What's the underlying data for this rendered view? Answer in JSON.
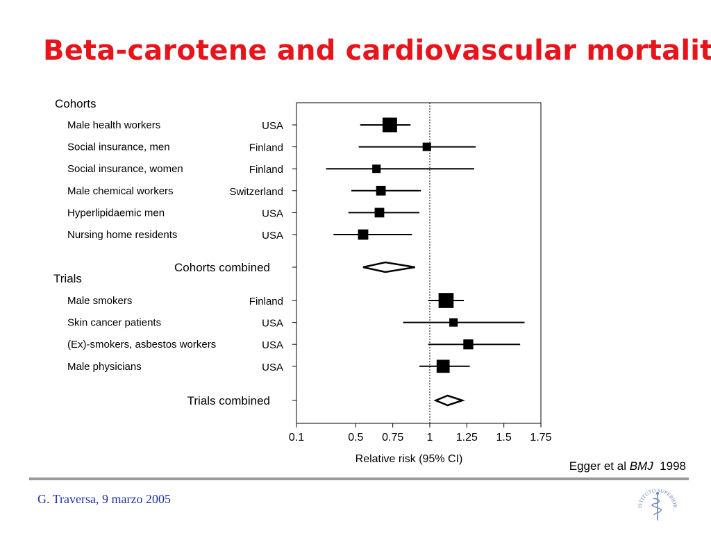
{
  "slide": {
    "title": "Beta-carotene and cardiovascular mortality",
    "citation": {
      "author": "Egger et al",
      "journal": "BMJ",
      "year": "1998"
    },
    "footer": {
      "author_date": "G. Traversa, 9 marzo 2005"
    },
    "seal_text": "ISTITUTO SUPERIORE DI SANITÀ",
    "colors": {
      "title": "#e8141c",
      "footer_text": "#1f2fa0",
      "rule": "#9a9a9a",
      "seal": "#6a86b8"
    }
  },
  "chart_data": {
    "type": "forest",
    "title": "Beta-carotene and cardiovascular mortality",
    "xlabel": "Relative risk (95% CI)",
    "ylabel": "",
    "xlim": [
      0.1,
      1.75
    ],
    "x_ticks": [
      "0.1",
      "0.5",
      "0.75",
      "1",
      "1.25",
      "1.5",
      "1.75"
    ],
    "reference_line": 1,
    "grid": false,
    "groups": [
      {
        "label": "Cohorts",
        "studies": [
          {
            "label": "Male health workers",
            "country": "USA",
            "rr": 0.73,
            "lo": 0.53,
            "hi": 0.87,
            "weight": 3
          },
          {
            "label": "Social insurance, men",
            "country": "Finland",
            "rr": 0.98,
            "lo": 0.52,
            "hi": 1.31,
            "weight": 1
          },
          {
            "label": "Social insurance, women",
            "country": "Finland",
            "rr": 0.64,
            "lo": 0.3,
            "hi": 1.3,
            "weight": 1
          },
          {
            "label": "Male chemical workers",
            "country": "Switzerland",
            "rr": 0.67,
            "lo": 0.47,
            "hi": 0.94,
            "weight": 1.3
          },
          {
            "label": "Hyperlipidaemic men",
            "country": "USA",
            "rr": 0.66,
            "lo": 0.45,
            "hi": 0.93,
            "weight": 1.3
          },
          {
            "label": "Nursing home residents",
            "country": "USA",
            "rr": 0.55,
            "lo": 0.35,
            "hi": 0.88,
            "weight": 1.5
          }
        ],
        "combined": {
          "label": "Cohorts combined",
          "rr": 0.7,
          "lo": 0.55,
          "hi": 0.9
        }
      },
      {
        "label": "Trials",
        "studies": [
          {
            "label": "Male smokers",
            "country": "Finland",
            "rr": 1.11,
            "lo": 0.99,
            "hi": 1.23,
            "weight": 3.2
          },
          {
            "label": "Skin cancer patients",
            "country": "USA",
            "rr": 1.16,
            "lo": 0.82,
            "hi": 1.64,
            "weight": 1
          },
          {
            "label": "(Ex)-smokers, asbestos workers",
            "country": "USA",
            "rr": 1.26,
            "lo": 0.99,
            "hi": 1.61,
            "weight": 1.4
          },
          {
            "label": "Male physicians",
            "country": "USA",
            "rr": 1.09,
            "lo": 0.93,
            "hi": 1.27,
            "weight": 2.4
          }
        ],
        "combined": {
          "label": "Trials combined",
          "rr": 1.12,
          "lo": 1.04,
          "hi": 1.22
        }
      }
    ]
  }
}
